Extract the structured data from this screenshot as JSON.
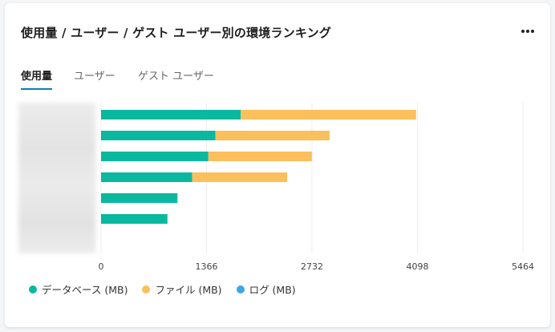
{
  "header": {
    "title": "使用量 / ユーザー / ゲスト ユーザー別の環境ランキング"
  },
  "tabs": [
    {
      "label": "使用量",
      "active": true
    },
    {
      "label": "ユーザー",
      "active": false
    },
    {
      "label": "ゲスト ユーザー",
      "active": false
    }
  ],
  "colors": {
    "database": "#0ab8a0",
    "file": "#fbbf5c",
    "log": "#3ba7e5",
    "grid": "#ececec",
    "tab_underline": "#0a7fb8"
  },
  "icons": {
    "more": "more-horizontal-icon"
  },
  "chart_data": {
    "type": "bar",
    "orientation": "horizontal",
    "stacked": true,
    "xlim": [
      0,
      5464
    ],
    "xticks": [
      "0",
      "1366",
      "2732",
      "4098",
      "5464"
    ],
    "grid": true,
    "legend_position": "bottom-left",
    "categories": [
      "",
      "",
      "",
      "",
      "",
      ""
    ],
    "series": [
      {
        "name": "データベース (MB)",
        "color": "#0ab8a0",
        "values": [
          1810,
          1480,
          1390,
          1180,
          990,
          860
        ]
      },
      {
        "name": "ファイル (MB)",
        "color": "#fbbf5c",
        "values": [
          2270,
          1480,
          1340,
          1230,
          0,
          0
        ]
      },
      {
        "name": "ログ (MB)",
        "color": "#3ba7e5",
        "values": [
          0,
          0,
          0,
          0,
          0,
          0
        ]
      }
    ]
  }
}
